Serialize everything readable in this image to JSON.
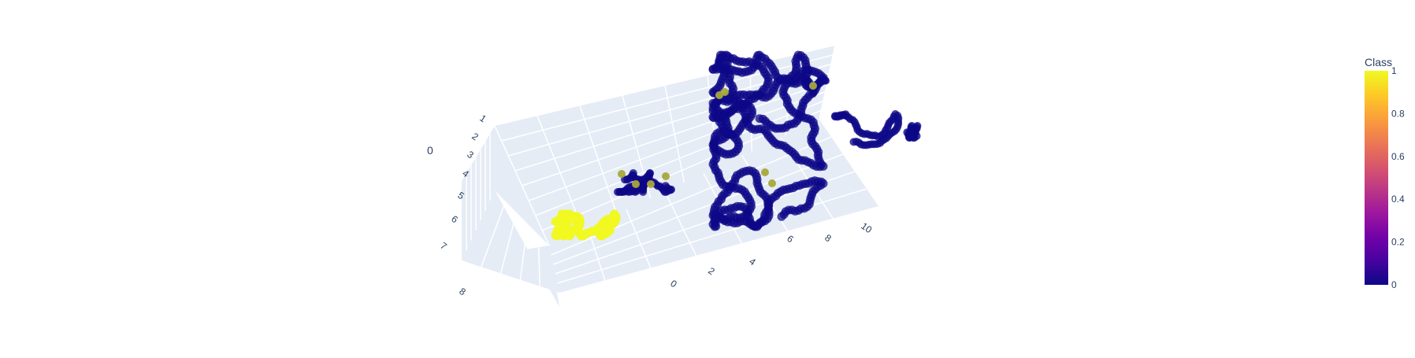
{
  "chart_data": {
    "type": "scatter3d",
    "colorbar": {
      "title": "Class",
      "range": [
        0,
        1
      ],
      "ticks": [
        "0",
        "0.2",
        "0.4",
        "0.6",
        "0.8",
        "1"
      ],
      "colorscale": [
        "#0d0887",
        "#46039f",
        "#7201a8",
        "#9c179e",
        "#bd3786",
        "#d8576b",
        "#ed7953",
        "#fb9f3a",
        "#fdca26",
        "#f0f921"
      ]
    },
    "axes": {
      "x": {
        "title": "0",
        "ticks": [
          "1",
          "2",
          "3",
          "4",
          "5",
          "6",
          "7",
          "8"
        ]
      },
      "y": {
        "title": "",
        "ticks": [
          "0",
          "2",
          "4",
          "6",
          "8",
          "10"
        ]
      }
    },
    "colors": {
      "class0": "#0d0887",
      "class1": "#f0f921",
      "class1_hidden": "#a8a83a"
    },
    "series": [
      {
        "name": "",
        "class": 1,
        "x": [
          7.5,
          7.6,
          7.7,
          7.8,
          7.9,
          8.0,
          7.4,
          7.7,
          7.9
        ],
        "y": [
          0.2,
          0.5,
          0.8,
          1.2,
          1.5,
          1.8,
          0.4,
          1.0,
          1.6
        ],
        "z": [
          0.1,
          0.2,
          0.3,
          0.2,
          0.4,
          0.3,
          0.5,
          0.6,
          0.5
        ]
      },
      {
        "name": "",
        "class": 0,
        "x": [
          5.1,
          5.2,
          5.3,
          5.4,
          5.5,
          5.6
        ],
        "y": [
          2.0,
          2.5,
          3.0,
          3.5,
          4.0,
          4.3
        ],
        "z": [
          0.1,
          0.2,
          0.2,
          0.3,
          0.2,
          0.1
        ]
      },
      {
        "name": "",
        "class": 0,
        "x": [
          2.0,
          2.5,
          3.0,
          3.5,
          4.0,
          4.5,
          5.0,
          5.5,
          6.0,
          6.5
        ],
        "y": [
          6.0,
          6.5,
          7.0,
          7.5,
          8.0,
          8.5,
          9.0,
          9.5,
          10.0,
          10.5
        ],
        "z": [
          0.2,
          0.4,
          0.6,
          0.5,
          0.3,
          0.4,
          0.6,
          0.7,
          0.5,
          0.3
        ]
      }
    ]
  }
}
